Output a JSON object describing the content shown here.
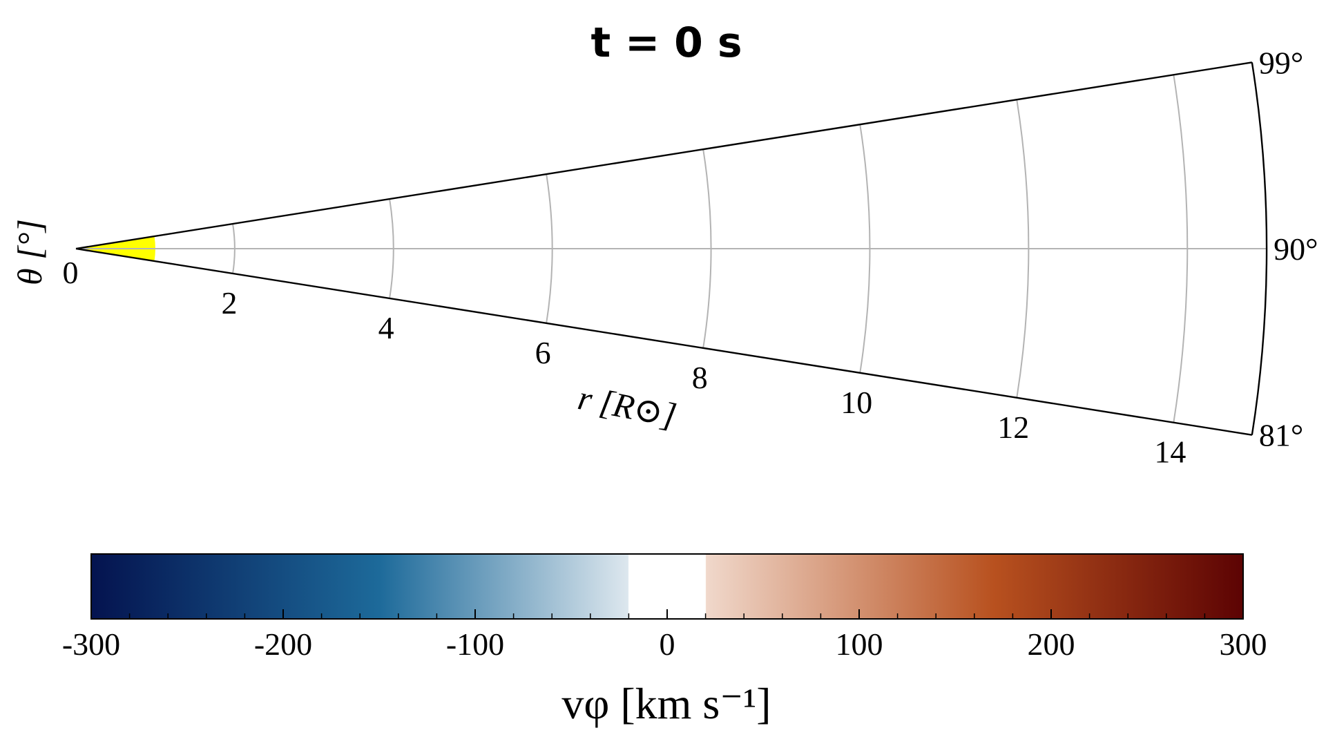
{
  "chart_data": {
    "type": "polar-wedge",
    "title": "t = 0 s",
    "r_label": "r [R⊙]",
    "theta_label": "θ [°]",
    "r_range": [
      0,
      15
    ],
    "r_ticks": [
      0,
      2,
      4,
      6,
      8,
      10,
      12,
      14
    ],
    "r_tick_labels": [
      "0",
      "2",
      "4",
      "6",
      "8",
      "10",
      "12",
      "14"
    ],
    "theta_range": [
      81,
      99
    ],
    "theta_ticks": [
      81,
      90,
      99
    ],
    "theta_tick_labels": [
      "81°",
      "90°",
      "99°"
    ],
    "grid": true,
    "source_region": {
      "r_max": 1,
      "color": "#ffff00"
    },
    "colorbar": {
      "label": "vφ [km s⁻¹]",
      "range": [
        -300,
        300
      ],
      "ticks": [
        -300,
        -200,
        -100,
        0,
        100,
        200,
        300
      ],
      "tick_labels": [
        "-300",
        "-200",
        "-100",
        "0",
        "100",
        "200",
        "300"
      ],
      "white_band": [
        -20,
        20
      ],
      "colors": {
        "min": "#04134f",
        "mid_negative": "#1d6a9a",
        "near_zero_negative": "#dde7ee",
        "zero": "#ffffff",
        "near_zero_positive": "#f0d8cb",
        "mid_positive": "#b8511f",
        "max": "#5c0303"
      }
    }
  }
}
